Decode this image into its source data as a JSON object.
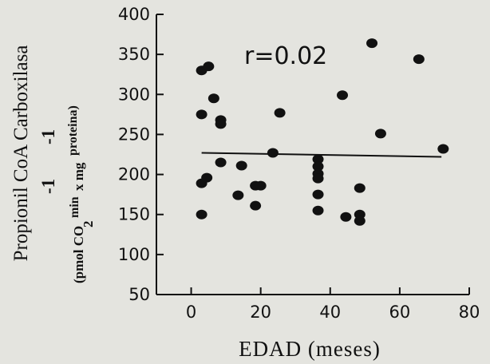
{
  "chart_data": {
    "type": "scatter",
    "title": "",
    "xlabel": "EDAD (meses)",
    "ylabel": "Propionil CoA Carboxilasa",
    "ylabel_units": "(pmol CO2 min-1 x mg-1 proteina)",
    "ylabel_units_parts": {
      "prefix": "(pmol CO",
      "sub": "2",
      "min": "min",
      "min_exp": "-1",
      "middle": "x mg",
      "mg_exp": "-1",
      "suffix": "proteina)"
    },
    "xlim": [
      -10,
      80
    ],
    "ylim": [
      50,
      400
    ],
    "xticks": [
      0,
      20,
      40,
      60,
      80
    ],
    "xtick_labels": [
      "0",
      "20",
      "40",
      "60",
      "80"
    ],
    "yticks": [
      50,
      100,
      150,
      200,
      250,
      300,
      350,
      400
    ],
    "ytick_labels": [
      "50",
      "100",
      "150",
      "200",
      "250",
      "300",
      "350",
      "400"
    ],
    "annotation": "r=0.02",
    "grid": false,
    "legend": "none",
    "colors": {
      "points": "#111111",
      "line": "#111111",
      "background": "#e4e4df"
    },
    "points": [
      {
        "x": 3,
        "y": 330
      },
      {
        "x": 5,
        "y": 335
      },
      {
        "x": 3,
        "y": 275
      },
      {
        "x": 6.5,
        "y": 295
      },
      {
        "x": 8.5,
        "y": 268
      },
      {
        "x": 8.5,
        "y": 263
      },
      {
        "x": 8.5,
        "y": 215
      },
      {
        "x": 3,
        "y": 189
      },
      {
        "x": 4.5,
        "y": 196
      },
      {
        "x": 3,
        "y": 150
      },
      {
        "x": 14.5,
        "y": 211
      },
      {
        "x": 13.5,
        "y": 174
      },
      {
        "x": 18.5,
        "y": 186
      },
      {
        "x": 20,
        "y": 186
      },
      {
        "x": 18.5,
        "y": 161
      },
      {
        "x": 23.5,
        "y": 227
      },
      {
        "x": 25.5,
        "y": 277
      },
      {
        "x": 36.5,
        "y": 219
      },
      {
        "x": 36.5,
        "y": 210
      },
      {
        "x": 36.5,
        "y": 201
      },
      {
        "x": 36.5,
        "y": 195
      },
      {
        "x": 36.5,
        "y": 175
      },
      {
        "x": 36.5,
        "y": 155
      },
      {
        "x": 43.5,
        "y": 299
      },
      {
        "x": 44.5,
        "y": 147
      },
      {
        "x": 48.5,
        "y": 183
      },
      {
        "x": 48.5,
        "y": 150
      },
      {
        "x": 48.5,
        "y": 142
      },
      {
        "x": 52,
        "y": 364
      },
      {
        "x": 54.5,
        "y": 251
      },
      {
        "x": 65.5,
        "y": 344
      },
      {
        "x": 72.5,
        "y": 232
      }
    ],
    "fit_line": {
      "x": [
        3,
        72
      ],
      "y": [
        227,
        222
      ]
    }
  }
}
